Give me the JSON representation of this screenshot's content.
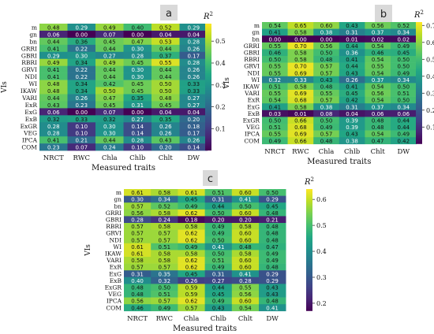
{
  "figure": {
    "background": "#ffffff"
  },
  "chart_data": [
    {
      "type": "heatmap",
      "panel_label": "a",
      "xlabel": "Measured traits",
      "ylabel": "VIs",
      "colorbar_label": "R2",
      "colorbar_ticks": [
        "0.1",
        "0.2",
        "0.3",
        "0.4",
        "0.5"
      ],
      "colorscale": "viridis",
      "vmin": 0.0,
      "vmax": 0.58,
      "x": [
        "NRCT",
        "RWC",
        "Chla",
        "Chlb",
        "Chlt",
        "DW"
      ],
      "y": [
        "m",
        "gn",
        "bn",
        "GRRI",
        "GBRI",
        "RBRI",
        "GRVI",
        "NDI",
        "WI",
        "IKAW",
        "VARI",
        "ExR",
        "ExG",
        "ExB",
        "ExGR",
        "VEG",
        "IPCA",
        "COM"
      ],
      "values": [
        [
          0.48,
          0.29,
          0.49,
          0.4,
          0.52,
          0.29
        ],
        [
          0.06,
          0.0,
          0.07,
          0.0,
          0.04,
          0.04
        ],
        [
          0.44,
          0.36,
          0.45,
          0.47,
          0.53,
          0.28
        ],
        [
          0.41,
          0.22,
          0.44,
          0.3,
          0.44,
          0.26
        ],
        [
          0.29,
          0.3,
          0.27,
          0.28,
          0.37,
          0.17
        ],
        [
          0.49,
          0.34,
          0.49,
          0.45,
          0.55,
          0.28
        ],
        [
          0.41,
          0.22,
          0.44,
          0.3,
          0.44,
          0.26
        ],
        [
          0.41,
          0.22,
          0.44,
          0.3,
          0.44,
          0.26
        ],
        [
          0.48,
          0.34,
          0.42,
          0.45,
          0.5,
          0.33
        ],
        [
          0.48,
          0.34,
          0.5,
          0.45,
          0.5,
          0.33
        ],
        [
          0.44,
          0.26,
          0.47,
          0.35,
          0.48,
          0.27
        ],
        [
          0.43,
          0.23,
          0.45,
          0.31,
          0.45,
          0.27
        ],
        [
          0.06,
          0.0,
          0.07,
          0.0,
          0.04,
          0.04
        ],
        [
          0.32,
          0.33,
          0.32,
          0.27,
          0.35,
          0.2
        ],
        [
          0.28,
          0.1,
          0.3,
          0.14,
          0.26,
          0.18
        ],
        [
          0.28,
          0.1,
          0.3,
          0.14,
          0.26,
          0.17
        ],
        [
          0.41,
          0.21,
          0.44,
          0.28,
          0.43,
          0.26
        ],
        [
          0.23,
          0.07,
          0.24,
          0.1,
          0.2,
          0.14
        ]
      ]
    },
    {
      "type": "heatmap",
      "panel_label": "b",
      "xlabel": "Measured traits",
      "ylabel": "VIs",
      "colorbar_label": "R2",
      "colorbar_ticks": [
        "0.1",
        "0.2",
        "0.3",
        "0.4",
        "0.5",
        "0.6",
        "0.7"
      ],
      "colorscale": "viridis",
      "vmin": 0.0,
      "vmax": 0.72,
      "x": [
        "NRCT",
        "RWC",
        "Chla",
        "Chlb",
        "Chlt",
        "DW"
      ],
      "y": [
        "m",
        "gn",
        "bn",
        "GRRI",
        "GBRI",
        "RBRI",
        "GRVI",
        "NDI",
        "WI",
        "IKAW",
        "VARI",
        "ExR",
        "ExG",
        "ExB",
        "ExGR",
        "VEG",
        "IPCA",
        "COM"
      ],
      "values": [
        [
          0.54,
          0.65,
          0.6,
          0.43,
          0.56,
          0.52
        ],
        [
          0.41,
          0.58,
          0.38,
          0.31,
          0.37,
          0.34
        ],
        [
          0.0,
          0.0,
          0.0,
          0.01,
          0.02,
          0.02
        ],
        [
          0.55,
          0.7,
          0.56,
          0.44,
          0.54,
          0.49
        ],
        [
          0.46,
          0.58,
          0.5,
          0.36,
          0.46,
          0.45
        ],
        [
          0.5,
          0.58,
          0.48,
          0.41,
          0.54,
          0.5
        ],
        [
          0.55,
          0.7,
          0.57,
          0.44,
          0.55,
          0.5
        ],
        [
          0.55,
          0.69,
          0.57,
          0.43,
          0.54,
          0.49
        ],
        [
          0.32,
          0.33,
          0.43,
          0.26,
          0.37,
          0.34
        ],
        [
          0.51,
          0.58,
          0.48,
          0.41,
          0.54,
          0.5
        ],
        [
          0.55,
          0.69,
          0.55,
          0.45,
          0.56,
          0.51
        ],
        [
          0.54,
          0.68,
          0.57,
          0.42,
          0.54,
          0.5
        ],
        [
          0.41,
          0.58,
          0.38,
          0.31,
          0.37,
          0.34
        ],
        [
          0.03,
          0.01,
          0.08,
          0.04,
          0.06,
          0.06
        ],
        [
          0.5,
          0.66,
          0.5,
          0.39,
          0.48,
          0.44
        ],
        [
          0.51,
          0.68,
          0.49,
          0.39,
          0.48,
          0.44
        ],
        [
          0.55,
          0.69,
          0.57,
          0.43,
          0.54,
          0.49
        ],
        [
          0.49,
          0.66,
          0.48,
          0.38,
          0.47,
          0.42
        ]
      ]
    },
    {
      "type": "heatmap",
      "panel_label": "c",
      "xlabel": "Measured traits",
      "ylabel": "VIs",
      "colorbar_label": "R2",
      "colorbar_ticks": [
        "0.2",
        "0.3",
        "0.4",
        "0.5",
        "0.6"
      ],
      "colorscale": "viridis",
      "vmin": 0.17,
      "vmax": 0.64,
      "x": [
        "NRCT",
        "RWC",
        "Chla",
        "Chlb",
        "Chlt",
        "DW"
      ],
      "y": [
        "m",
        "gn",
        "bn",
        "GRRI",
        "GBRI",
        "RBRI",
        "GRVI",
        "NDI",
        "WI",
        "IKAW",
        "VARI",
        "ExR",
        "ExG",
        "ExB",
        "ExGR",
        "VEG",
        "IPCA",
        "COM"
      ],
      "values": [
        [
          0.61,
          0.58,
          0.61,
          0.51,
          0.6,
          0.5
        ],
        [
          0.3,
          0.34,
          0.45,
          0.31,
          0.41,
          0.29
        ],
        [
          0.57,
          0.52,
          0.49,
          0.44,
          0.5,
          0.45
        ],
        [
          0.56,
          0.58,
          0.62,
          0.5,
          0.6,
          0.48
        ],
        [
          0.28,
          0.24,
          0.18,
          0.2,
          0.2,
          0.21
        ],
        [
          0.57,
          0.58,
          0.58,
          0.49,
          0.58,
          0.48
        ],
        [
          0.57,
          0.57,
          0.62,
          0.49,
          0.6,
          0.48
        ],
        [
          0.57,
          0.57,
          0.62,
          0.5,
          0.6,
          0.48
        ],
        [
          0.61,
          0.51,
          0.49,
          0.41,
          0.48,
          0.47
        ],
        [
          0.61,
          0.58,
          0.58,
          0.5,
          0.58,
          0.49
        ],
        [
          0.58,
          0.58,
          0.62,
          0.51,
          0.6,
          0.49
        ],
        [
          0.57,
          0.57,
          0.62,
          0.49,
          0.6,
          0.48
        ],
        [
          0.31,
          0.35,
          0.45,
          0.31,
          0.41,
          0.29
        ],
        [
          0.4,
          0.32,
          0.26,
          0.27,
          0.28,
          0.29
        ],
        [
          0.48,
          0.5,
          0.59,
          0.44,
          0.55,
          0.43
        ],
        [
          0.48,
          0.51,
          0.59,
          0.45,
          0.56,
          0.43
        ],
        [
          0.56,
          0.57,
          0.62,
          0.49,
          0.6,
          0.48
        ],
        [
          0.46,
          0.49,
          0.57,
          0.43,
          0.54,
          0.41
        ]
      ]
    }
  ]
}
